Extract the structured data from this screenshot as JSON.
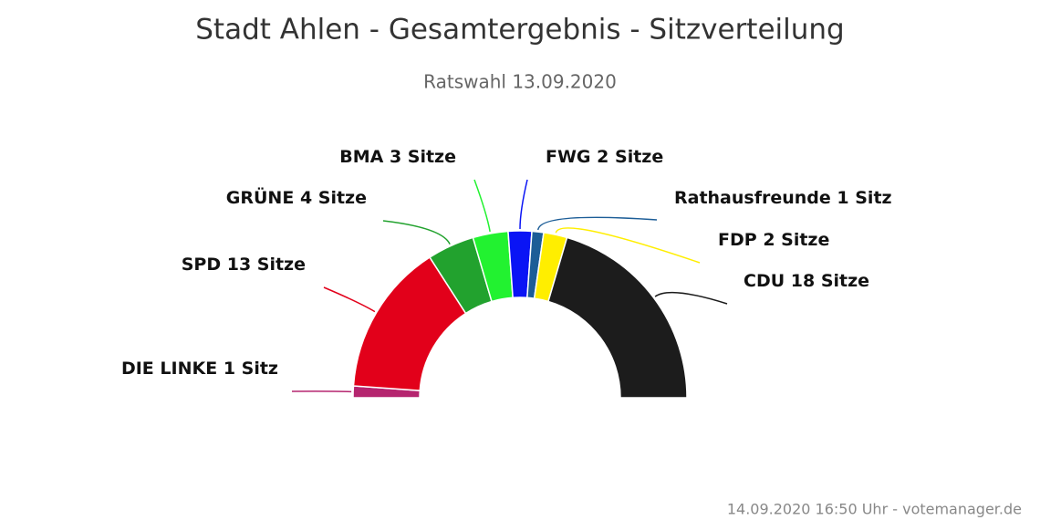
{
  "chart_data": {
    "type": "semidonut",
    "title": "Stadt Ahlen - Gesamtergebnis - Sitzverteilung",
    "subtitle": "Ratswahl 13.09.2020",
    "credit": "14.09.2020 16:50 Uhr - votemanager.de",
    "categories": [
      "DIE LINKE",
      "SPD",
      "GRÜNE",
      "BMA",
      "FWG",
      "Rathausfreunde",
      "FDP",
      "CDU"
    ],
    "values": [
      1,
      13,
      4,
      3,
      2,
      1,
      2,
      18
    ],
    "value_labels": [
      "1 Sitz",
      "13 Sitze",
      "4 Sitze",
      "3 Sitze",
      "2 Sitze",
      "1 Sitz",
      "2 Sitze",
      "18 Sitze"
    ],
    "colors": [
      "#b5256f",
      "#e2001a",
      "#22a22e",
      "#22f230",
      "#0a14f5",
      "#1c5d97",
      "#ffee00",
      "#1c1c1c"
    ]
  }
}
